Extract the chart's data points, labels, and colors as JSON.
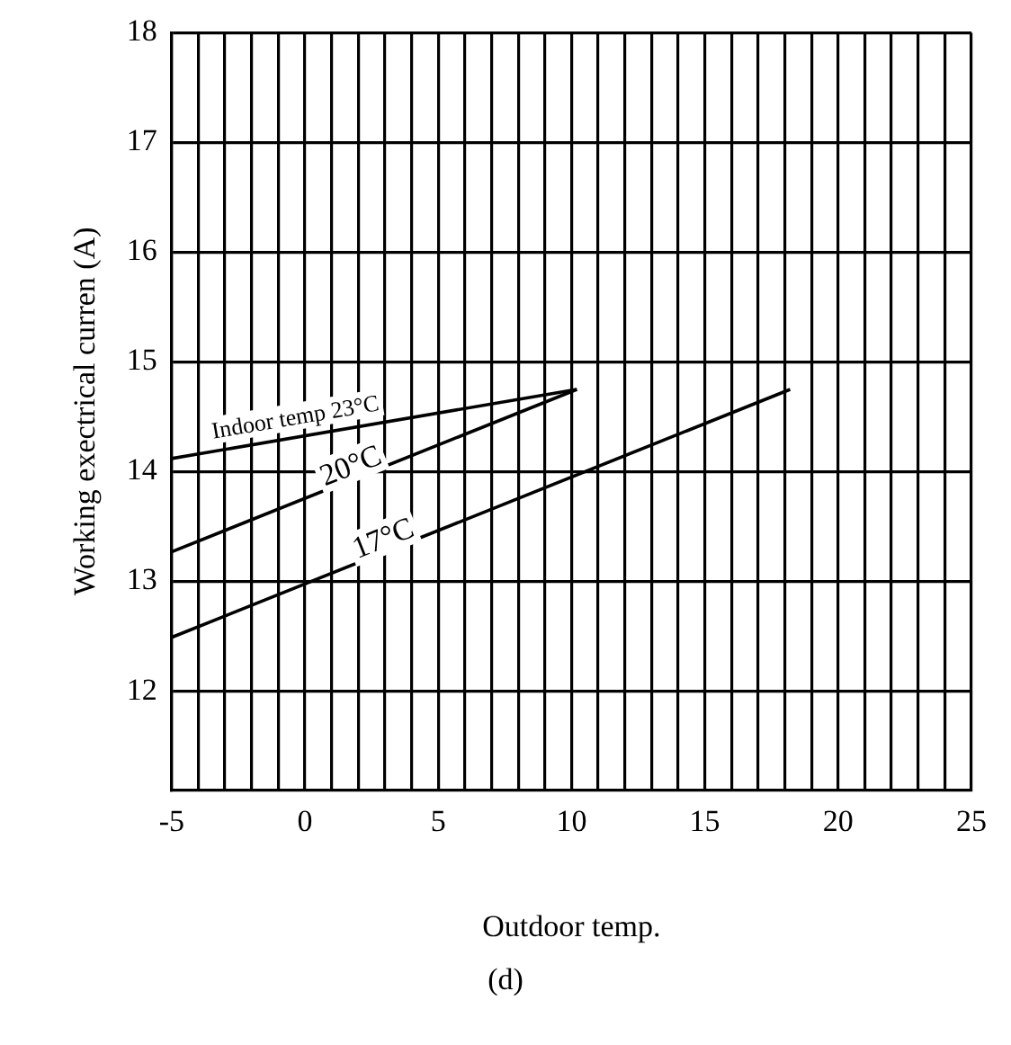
{
  "chart_data": {
    "type": "line",
    "xlabel": "Outdoor temp.",
    "ylabel": "Working exectrical curren (A)",
    "annotations": [
      "(d)"
    ],
    "series": [
      {
        "name": "Indoor temp 23°C",
        "color": "#000000",
        "x": [
          -5,
          10.2
        ],
        "values": [
          14.12,
          14.75
        ]
      },
      {
        "name": "20°C",
        "color": "#000000",
        "x": [
          -5,
          10.2
        ],
        "values": [
          13.27,
          14.75
        ]
      },
      {
        "name": "17°C",
        "color": "#000000",
        "x": [
          -5,
          18.2
        ],
        "values": [
          12.49,
          14.75
        ]
      }
    ],
    "xlim": [
      -5,
      25
    ],
    "xticks": [
      -5,
      {
        "value": -4,
        "label": null
      },
      {
        "value": -3,
        "label": null
      },
      {
        "value": -2,
        "label": null
      },
      {
        "value": -1,
        "label": null
      },
      0,
      {
        "value": 1,
        "label": null
      },
      {
        "value": 2,
        "label": null
      },
      {
        "value": 3,
        "label": null
      },
      {
        "value": 4,
        "label": null
      },
      5,
      {
        "value": 6,
        "label": null
      },
      {
        "value": 7,
        "label": null
      },
      {
        "value": 8,
        "label": null
      },
      {
        "value": 9,
        "label": null
      },
      10,
      {
        "value": 11,
        "label": null
      },
      {
        "value": 12,
        "label": null
      },
      {
        "value": 13,
        "label": null
      },
      {
        "value": 14,
        "label": null
      },
      15,
      {
        "value": 16,
        "label": null
      },
      {
        "value": 17,
        "label": null
      },
      {
        "value": 18,
        "label": null
      },
      {
        "value": 19,
        "label": null
      },
      20,
      {
        "value": 21,
        "label": null
      },
      {
        "value": 22,
        "label": null
      },
      {
        "value": 23,
        "label": null
      },
      {
        "value": 24,
        "label": null
      },
      25
    ],
    "ylim": [
      11.1,
      18
    ],
    "yticks": [
      12,
      13,
      14,
      15,
      16,
      17,
      18
    ],
    "grid": true,
    "legend": false,
    "marker": "none",
    "line_style": "solid"
  }
}
